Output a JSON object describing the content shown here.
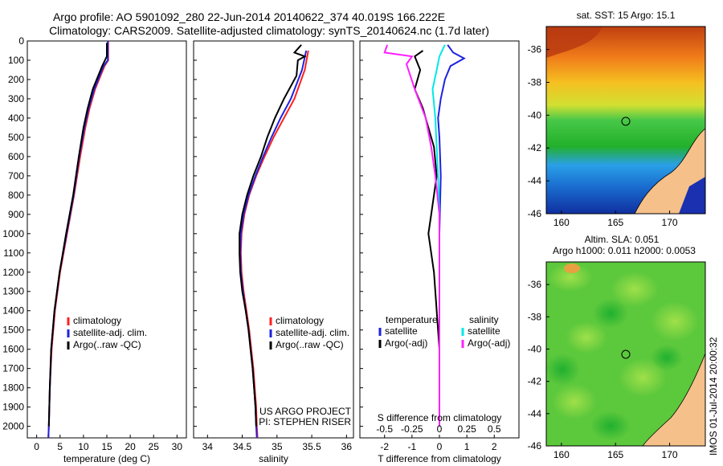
{
  "header": {
    "title_line1": "Argo profile: AO 5901092_280 22-Jun-2014 20140622_374 40.019S 166.222E",
    "title_line2": "Climatology: CARS2009. Satellite-adjusted climatology: synTS_20140624.nc (1.7d later)"
  },
  "colors": {
    "clim": "#ff2020",
    "sat": "#1e22e0",
    "argo": "#000000",
    "sat_s": "#00e8e8",
    "argo_s": "#ff20ff"
  },
  "chart_data": [
    {
      "type": "line",
      "name_key": "temperature",
      "xlabel": "temperature (deg C)",
      "ylabel": "",
      "xlim": [
        -2,
        32
      ],
      "ylim": [
        2060,
        0
      ],
      "xticks": [
        "0",
        "5",
        "10",
        "15",
        "20",
        "25",
        "30"
      ],
      "yticks": [
        "0",
        "100",
        "200",
        "300",
        "400",
        "500",
        "600",
        "700",
        "800",
        "900",
        "1000",
        "1100",
        "1200",
        "1300",
        "1400",
        "1500",
        "1600",
        "1700",
        "1800",
        "1900",
        "2000"
      ],
      "legend": [
        "climatology",
        "satellite-adj. clim.",
        "Argo(..raw -QC)"
      ],
      "series": [
        {
          "name": "climatology",
          "color": "#ff2020",
          "points": [
            [
              15.3,
              0
            ],
            [
              15.3,
              100
            ],
            [
              14.5,
              130
            ],
            [
              12.5,
              250
            ],
            [
              11.3,
              350
            ],
            [
              10.4,
              450
            ],
            [
              9.3,
              600
            ],
            [
              8.0,
              800
            ],
            [
              6.5,
              1000
            ],
            [
              5.0,
              1200
            ],
            [
              3.9,
              1400
            ],
            [
              3.2,
              1600
            ],
            [
              2.8,
              1800
            ],
            [
              2.6,
              2000
            ],
            [
              2.5,
              2060
            ]
          ]
        },
        {
          "name": "satellite-adj. clim.",
          "color": "#1e22e0",
          "points": [
            [
              15.2,
              0
            ],
            [
              15.2,
              100
            ],
            [
              14.3,
              130
            ],
            [
              12.3,
              250
            ],
            [
              11.1,
              350
            ],
            [
              10.2,
              450
            ],
            [
              9.1,
              600
            ],
            [
              7.9,
              800
            ],
            [
              6.4,
              1000
            ],
            [
              4.9,
              1200
            ],
            [
              3.8,
              1400
            ],
            [
              3.1,
              1600
            ],
            [
              2.8,
              1800
            ],
            [
              2.6,
              2000
            ],
            [
              2.5,
              2060
            ]
          ]
        },
        {
          "name": "Argo(..raw -QC)",
          "color": "#000000",
          "points": [
            [
              15.0,
              10
            ],
            [
              15.0,
              80
            ],
            [
              14.0,
              130
            ],
            [
              12.0,
              250
            ],
            [
              10.9,
              350
            ],
            [
              10.0,
              450
            ],
            [
              9.0,
              600
            ],
            [
              7.8,
              800
            ],
            [
              6.3,
              1000
            ],
            [
              4.9,
              1200
            ],
            [
              3.8,
              1400
            ],
            [
              3.1,
              1600
            ],
            [
              2.8,
              1800
            ],
            [
              2.6,
              2000
            ]
          ]
        }
      ]
    },
    {
      "type": "line",
      "name_key": "salinity",
      "xlabel": "salinity",
      "xlim": [
        33.8,
        36.1
      ],
      "ylim": [
        2060,
        0
      ],
      "xticks": [
        "34",
        "34.5",
        "35",
        "35.5",
        "36"
      ],
      "legend": [
        "climatology",
        "satellite-adj. clim.",
        "Argo(..raw -QC)"
      ],
      "series": [
        {
          "name": "climatology",
          "color": "#ff2020",
          "points": [
            [
              35.45,
              50
            ],
            [
              35.4,
              150
            ],
            [
              35.25,
              300
            ],
            [
              35.1,
              400
            ],
            [
              34.95,
              500
            ],
            [
              34.82,
              600
            ],
            [
              34.7,
              700
            ],
            [
              34.6,
              800
            ],
            [
              34.53,
              900
            ],
            [
              34.49,
              1000
            ],
            [
              34.48,
              1100
            ],
            [
              34.49,
              1200
            ],
            [
              34.52,
              1300
            ],
            [
              34.56,
              1400
            ],
            [
              34.6,
              1500
            ],
            [
              34.63,
              1600
            ],
            [
              34.66,
              1700
            ],
            [
              34.68,
              1800
            ],
            [
              34.7,
              1900
            ],
            [
              34.71,
              2000
            ],
            [
              34.72,
              2060
            ]
          ]
        },
        {
          "name": "satellite-adj. clim.",
          "color": "#1e22e0",
          "points": [
            [
              35.42,
              50
            ],
            [
              35.36,
              150
            ],
            [
              35.2,
              300
            ],
            [
              35.05,
              400
            ],
            [
              34.92,
              500
            ],
            [
              34.8,
              600
            ],
            [
              34.69,
              700
            ],
            [
              34.59,
              800
            ],
            [
              34.52,
              900
            ],
            [
              34.48,
              1000
            ],
            [
              34.47,
              1100
            ],
            [
              34.48,
              1200
            ],
            [
              34.51,
              1300
            ],
            [
              34.55,
              1400
            ],
            [
              34.59,
              1500
            ],
            [
              34.62,
              1600
            ],
            [
              34.65,
              1700
            ],
            [
              34.67,
              1800
            ],
            [
              34.69,
              1900
            ],
            [
              34.7,
              2000
            ],
            [
              34.71,
              2060
            ]
          ]
        },
        {
          "name": "Argo(..raw -QC)",
          "color": "#000000",
          "points": [
            [
              35.35,
              20
            ],
            [
              35.25,
              60
            ],
            [
              35.4,
              80
            ],
            [
              35.3,
              100
            ],
            [
              35.28,
              180
            ],
            [
              35.1,
              300
            ],
            [
              34.97,
              400
            ],
            [
              34.86,
              500
            ],
            [
              34.77,
              600
            ],
            [
              34.66,
              700
            ],
            [
              34.57,
              800
            ],
            [
              34.5,
              900
            ],
            [
              34.46,
              1000
            ],
            [
              34.46,
              1100
            ],
            [
              34.47,
              1200
            ],
            [
              34.5,
              1300
            ],
            [
              34.55,
              1400
            ],
            [
              34.59,
              1500
            ],
            [
              34.62,
              1600
            ],
            [
              34.65,
              1700
            ],
            [
              34.67,
              1800
            ],
            [
              34.69,
              1900
            ],
            [
              34.7,
              2000
            ]
          ]
        }
      ],
      "annotation": [
        "US ARGO PROJECT",
        "PI: STEPHEN RISER"
      ]
    },
    {
      "type": "line",
      "name_key": "difference",
      "xlabel": "T difference from climatology",
      "xlabel_top": "S difference from climatology",
      "xlim": [
        -2.9,
        2.9
      ],
      "ylim": [
        2060,
        0
      ],
      "xticks": [
        "-2",
        "-1",
        "0",
        "1",
        "2"
      ],
      "xticks_s": [
        "-0.5",
        "-0.25",
        "0",
        "0.25",
        "0.5"
      ],
      "legend_t": {
        "title": "temperature",
        "items": [
          "satellite",
          "Argo(-adj)"
        ]
      },
      "legend_s": {
        "title": "salinity",
        "items": [
          "satellite",
          "Argo(-adj)"
        ]
      },
      "series": [
        {
          "name": "T satellite",
          "color": "#1e22e0",
          "points": [
            [
              0.3,
              20
            ],
            [
              0.5,
              60
            ],
            [
              0.9,
              90
            ],
            [
              0.4,
              130
            ],
            [
              0.2,
              200
            ],
            [
              0.05,
              300
            ],
            [
              -0.05,
              400
            ],
            [
              0,
              500
            ],
            [
              0.05,
              700
            ],
            [
              0.0,
              1000
            ],
            [
              0.0,
              1500
            ],
            [
              0.0,
              2000
            ]
          ]
        },
        {
          "name": "T Argo(-adj)",
          "color": "#000000",
          "points": [
            [
              -0.6,
              50
            ],
            [
              -0.9,
              80
            ],
            [
              -0.7,
              150
            ],
            [
              -0.9,
              250
            ],
            [
              -0.6,
              350
            ],
            [
              -0.4,
              450
            ],
            [
              -0.2,
              550
            ],
            [
              -0.1,
              700
            ],
            [
              -0.3,
              900
            ],
            [
              -0.4,
              1000
            ],
            [
              -0.2,
              1200
            ],
            [
              -0.1,
              1400
            ],
            [
              0,
              1600
            ],
            [
              0,
              2000
            ]
          ]
        },
        {
          "name": "S satellite",
          "color": "#00e8e8",
          "points": [
            [
              0.2,
              20
            ],
            [
              0.0,
              80
            ],
            [
              -0.1,
              150
            ],
            [
              -0.25,
              250
            ],
            [
              -0.15,
              400
            ],
            [
              -0.1,
              550
            ],
            [
              -0.05,
              700
            ],
            [
              0,
              900
            ],
            [
              0,
              1200
            ],
            [
              0,
              1500
            ],
            [
              0,
              2000
            ]
          ]
        },
        {
          "name": "S Argo(-adj)",
          "color": "#ff20ff",
          "points": [
            [
              -1.9,
              20
            ],
            [
              -2.0,
              60
            ],
            [
              -1.0,
              80
            ],
            [
              -1.2,
              120
            ],
            [
              -0.9,
              250
            ],
            [
              -0.5,
              400
            ],
            [
              -0.3,
              550
            ],
            [
              -0.15,
              700
            ],
            [
              0,
              900
            ],
            [
              0,
              1200
            ],
            [
              0,
              2000
            ]
          ]
        }
      ]
    },
    {
      "type": "heatmap",
      "name_key": "sst",
      "title": "sat. SST: 15  Argo: 15.1",
      "xticks": [
        "160",
        "165",
        "170"
      ],
      "yticks": [
        "-36",
        "-38",
        "-40",
        "-42",
        "-44",
        "-46"
      ],
      "xlim": [
        158.6,
        173.3
      ],
      "ylim": [
        -46,
        -34.6
      ],
      "marker": [
        166.22,
        -40.02
      ]
    },
    {
      "type": "heatmap",
      "name_key": "sla",
      "title": "Altim. SLA: 0.051",
      "subtitle": "Argo h1000: 0.011 h2000: 0.0053",
      "xticks": [
        "160",
        "165",
        "170"
      ],
      "yticks": [
        "-36",
        "-38",
        "-40",
        "-42",
        "-44",
        "-46"
      ],
      "xlim": [
        158.6,
        173.3
      ],
      "ylim": [
        -46,
        -34.6
      ],
      "marker": [
        166.22,
        -40.02
      ]
    }
  ],
  "footer": {
    "stamp": "IMOS 01-Jul-2014 20:00:32"
  }
}
